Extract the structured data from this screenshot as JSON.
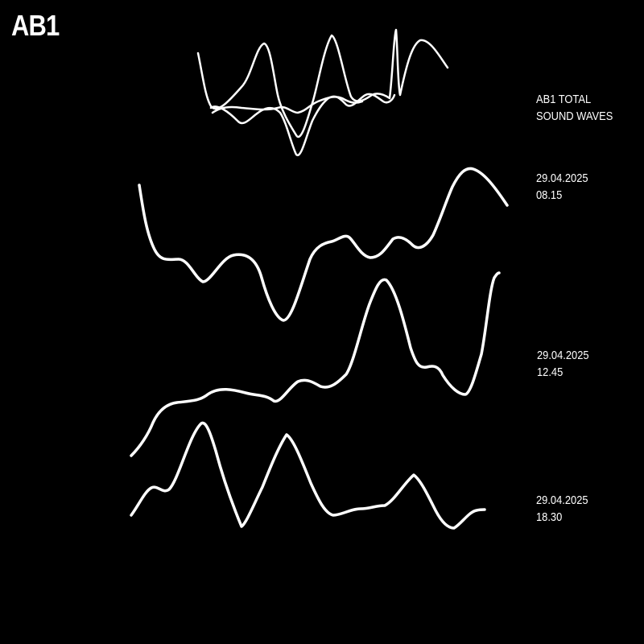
{
  "logo": "AB1",
  "caption": {
    "line1": "AB1 TOTAL",
    "line2": "SOUND WAVES"
  },
  "recordings": [
    {
      "date": "29.04.2025",
      "time": "08.15"
    },
    {
      "date": "29.04.2025",
      "time": "12.45"
    },
    {
      "date": "29.04.2025",
      "time": "18.30"
    }
  ],
  "colors": {
    "background": "#000000",
    "foreground": "#ffffff"
  }
}
